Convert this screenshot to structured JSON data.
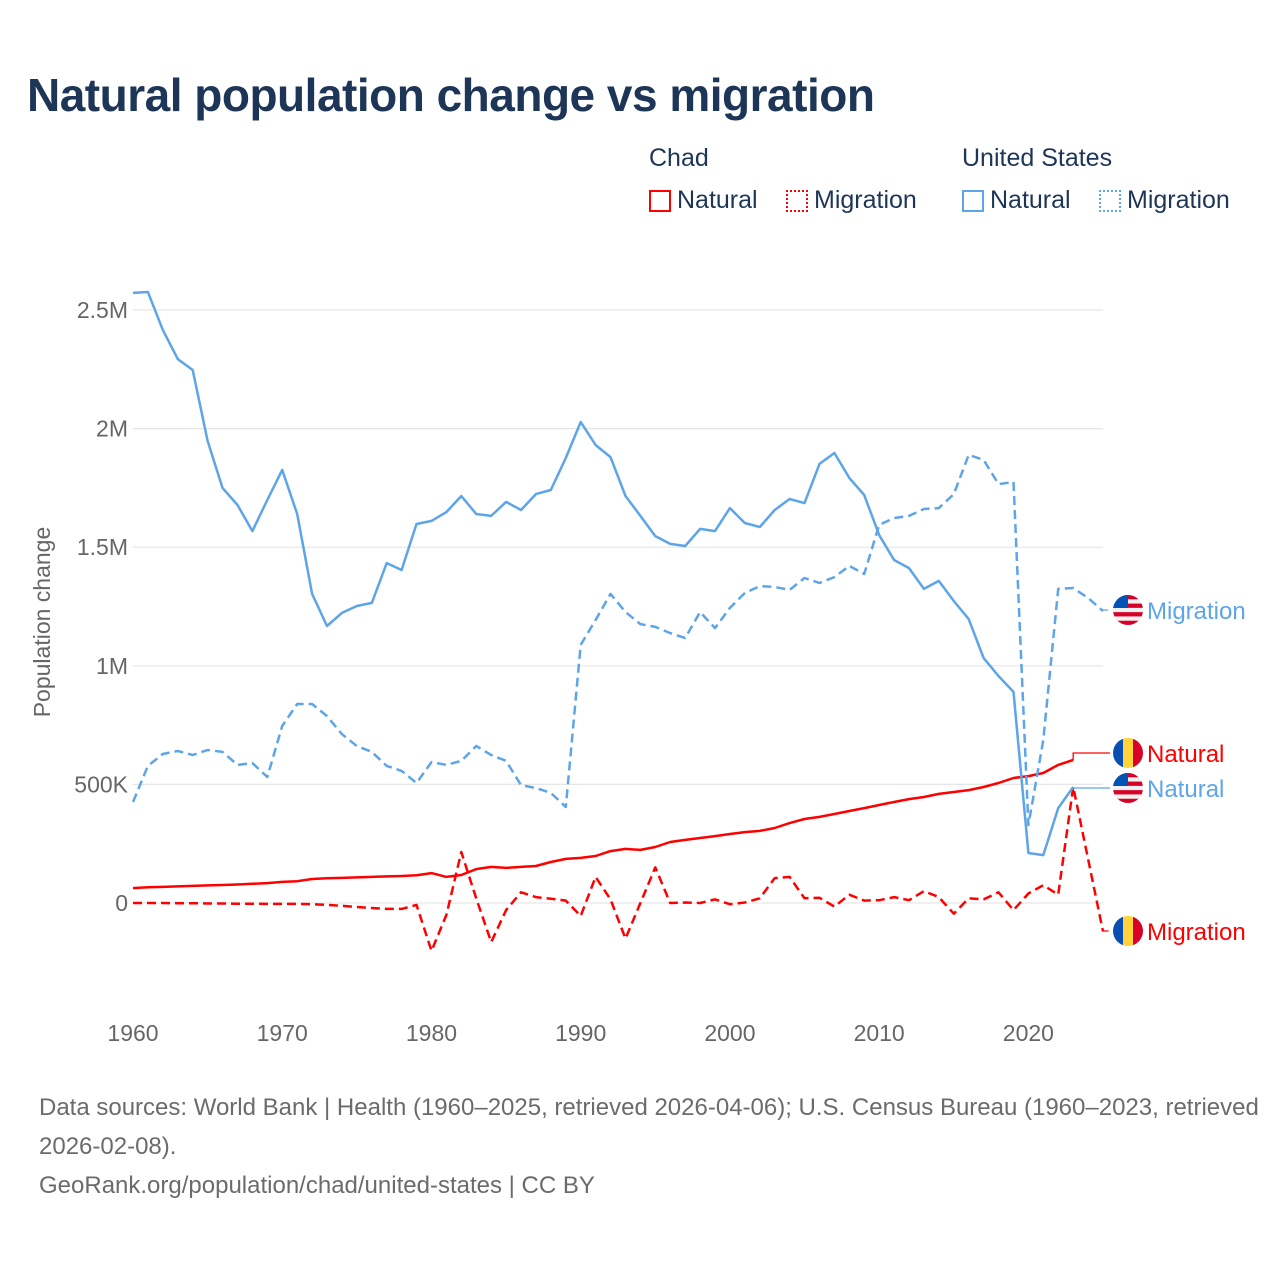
{
  "title": "Natural population change vs migration",
  "legend": {
    "groups": [
      {
        "name": "Chad",
        "color": "#ff0000",
        "items": [
          "Natural",
          "Migration"
        ]
      },
      {
        "name": "United States",
        "color": "#5da5e8",
        "items": [
          "Natural",
          "Migration"
        ]
      }
    ]
  },
  "footer": {
    "sources": "Data sources: World Bank | Health (1960–2025, retrieved 2026-04-06); U.S. Census Bureau (1960–2023, retrieved 2026-02-08).",
    "credit": "GeoRank.org/population/chad/united-states | CC BY"
  },
  "chart_data": {
    "type": "line",
    "title": "Natural population change vs migration",
    "xlabel": "",
    "ylabel": "Population change",
    "xlim": [
      1960,
      2025
    ],
    "ylim": [
      -430000,
      2600000
    ],
    "x_ticks": [
      1960,
      1970,
      1980,
      1990,
      2000,
      2010,
      2020
    ],
    "x_tick_labels": [
      "1960",
      "1970",
      "1980",
      "1990",
      "2000",
      "2010",
      "2020"
    ],
    "y_ticks": [
      0,
      500000,
      1000000,
      1500000,
      2000000,
      2500000
    ],
    "y_tick_labels": [
      "0",
      "500K",
      "1M",
      "1.5M",
      "2M",
      "2.5M"
    ],
    "grid": true,
    "legend_position": "top-right",
    "series": [
      {
        "name": "United States Natural",
        "label": "Natural",
        "country": "United States",
        "style": "solid",
        "color": "#5da5e8",
        "start_year": 1960,
        "values_thousands": [
          2572,
          2576,
          2416,
          2293,
          2247,
          1948,
          1750,
          1678,
          1568,
          1699,
          1826,
          1640,
          1303,
          1168,
          1223,
          1252,
          1265,
          1433,
          1404,
          1598,
          1611,
          1648,
          1716,
          1640,
          1632,
          1691,
          1657,
          1724,
          1741,
          1876,
          2028,
          1931,
          1880,
          1716,
          1632,
          1547,
          1514,
          1505,
          1577,
          1568,
          1665,
          1602,
          1585,
          1657,
          1703,
          1686,
          1851,
          1897,
          1792,
          1720,
          1551,
          1446,
          1412,
          1324,
          1358,
          1273,
          1197,
          1033,
          957,
          890,
          211,
          202,
          400,
          489
        ]
      },
      {
        "name": "United States Migration",
        "label": "Migration",
        "country": "United States",
        "style": "dashed",
        "color": "#5da5e8",
        "start_year": 1960,
        "values_thousands": [
          426,
          578,
          628,
          641,
          624,
          645,
          637,
          582,
          590,
          531,
          746,
          839,
          839,
          788,
          712,
          662,
          637,
          578,
          557,
          506,
          594,
          582,
          599,
          662,
          624,
          599,
          497,
          485,
          464,
          405,
          1088,
          1193,
          1303,
          1227,
          1176,
          1164,
          1138,
          1117,
          1227,
          1159,
          1244,
          1307,
          1336,
          1332,
          1320,
          1370,
          1349,
          1374,
          1421,
          1387,
          1594,
          1623,
          1632,
          1661,
          1665,
          1724,
          1889,
          1868,
          1766,
          1775,
          329,
          687,
          1324,
          1328,
          1286,
          1231
        ]
      },
      {
        "name": "Chad Natural",
        "label": "Natural",
        "country": "Chad",
        "style": "solid",
        "color": "#ff0000",
        "start_year": 1960,
        "values_thousands": [
          63,
          66,
          68,
          70,
          72,
          74,
          76,
          78,
          81,
          84,
          89,
          92,
          101,
          104,
          106,
          108,
          110,
          112,
          114,
          117,
          126,
          110,
          118,
          143,
          152,
          148,
          152,
          156,
          173,
          186,
          190,
          198,
          219,
          228,
          224,
          236,
          257,
          266,
          274,
          282,
          291,
          299,
          304,
          316,
          337,
          354,
          363,
          375,
          388,
          400,
          413,
          426,
          438,
          447,
          460,
          468,
          476,
          489,
          506,
          527,
          535,
          548,
          582,
          603
        ]
      },
      {
        "name": "Chad Migration",
        "label": "Migration",
        "country": "Chad",
        "style": "dashed",
        "color": "#ff0000",
        "start_year": 1960,
        "values_thousands": [
          0,
          0,
          0,
          -1,
          -1,
          -2,
          -2,
          -3,
          -3,
          -4,
          -4,
          -4,
          -5,
          -8,
          -12,
          -17,
          -21,
          -25,
          -25,
          -8,
          -202,
          -50,
          215,
          20,
          -165,
          -30,
          45,
          25,
          18,
          10,
          -55,
          110,
          15,
          -150,
          0,
          150,
          0,
          2,
          0,
          15,
          -5,
          2,
          20,
          105,
          110,
          20,
          22,
          -15,
          35,
          10,
          12,
          25,
          12,
          50,
          25,
          -45,
          20,
          15,
          45,
          -30,
          40,
          75,
          35,
          490,
          185,
          -120
        ]
      }
    ]
  }
}
